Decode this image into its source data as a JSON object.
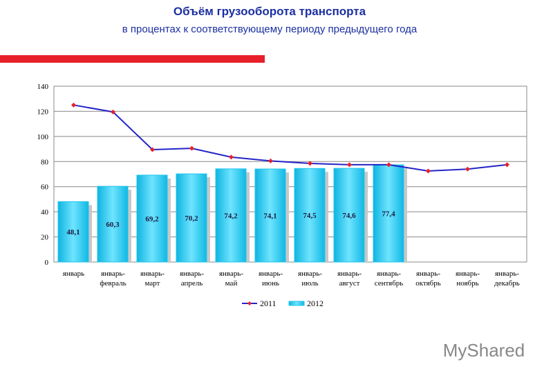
{
  "chart_data": {
    "type": "bar",
    "title": "Объём грузооборота транспорта",
    "subtitle": "в процентах к соответствующему периоду предыдущего года",
    "categories": [
      "январь",
      "январь-февраль",
      "январь-март",
      "январь-апрель",
      "январь-май",
      "январь-июнь",
      "январь-июль",
      "январь-август",
      "январь-сентябрь",
      "январь-октябрь",
      "январь-ноябрь",
      "январь-декабрь"
    ],
    "series": [
      {
        "name": "2011",
        "type": "line",
        "color": "#2323c8",
        "marker_color": "#e8202a",
        "values": [
          125,
          119.5,
          89.5,
          90.5,
          83.5,
          80.5,
          78.5,
          77.5,
          77.5,
          72.5,
          74,
          77.5
        ]
      },
      {
        "name": "2012",
        "type": "bar",
        "color": "#1fc6ee",
        "values": [
          48.1,
          60.3,
          69.2,
          70.2,
          74.2,
          74.1,
          74.5,
          74.6,
          77.4,
          null,
          null,
          null
        ],
        "value_labels": [
          "48,1",
          "60,3",
          "69,2",
          "70,2",
          "74,2",
          "74,1",
          "74,5",
          "74,6",
          "77,4",
          null,
          null,
          null
        ]
      }
    ],
    "ylim": [
      0,
      140
    ],
    "yticks": [
      0,
      20,
      40,
      60,
      80,
      100,
      120,
      140
    ],
    "grid": true,
    "legend": "bottom",
    "watermark": "MyShared"
  }
}
